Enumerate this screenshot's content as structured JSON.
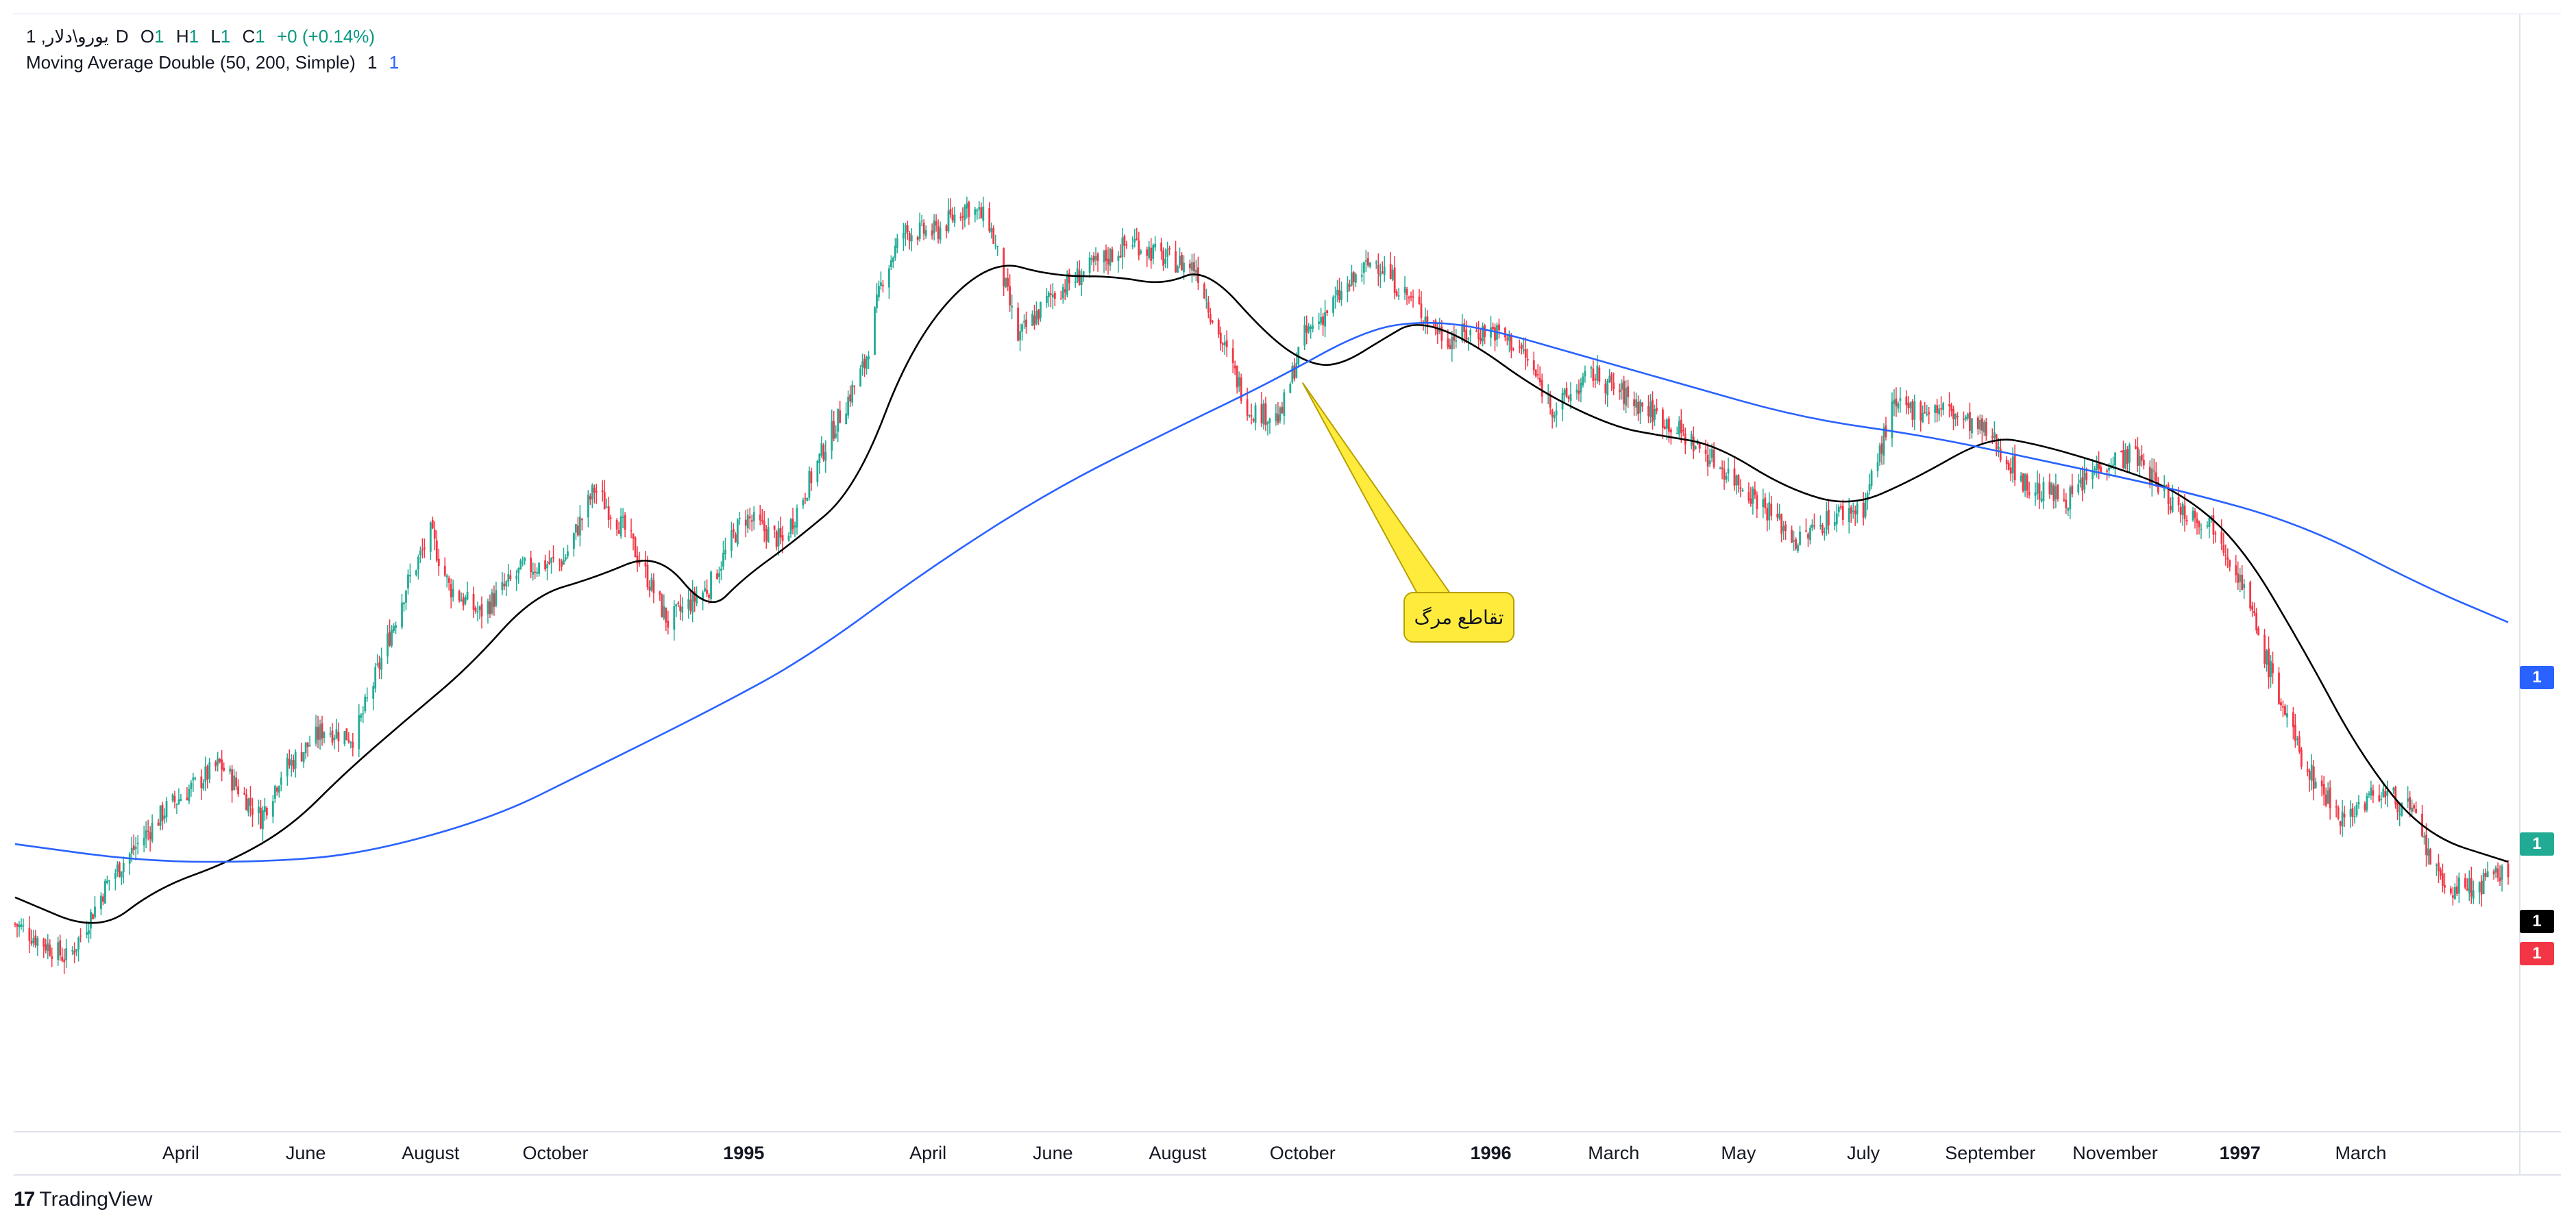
{
  "legend": {
    "symbol": "1 ,یورو\\دلار",
    "interval": "D",
    "o_label": "O",
    "o_value": "1",
    "h_label": "H",
    "h_value": "1",
    "l_label": "L",
    "l_value": "1",
    "c_label": "C",
    "c_value": "1",
    "change": "+0 (+0.14%)",
    "indicator_name": "Moving Average Double (50, 200, Simple)",
    "indicator_value_1": "1",
    "indicator_value_2": "1"
  },
  "annotation": {
    "text": "تقاطع مرگ"
  },
  "price_tags": [
    {
      "label": "1",
      "color": "#2962ff"
    },
    {
      "label": "1",
      "color": "#22ab94"
    },
    {
      "label": "1",
      "color": "#000000"
    },
    {
      "label": "1",
      "color": "#f23645"
    }
  ],
  "branding": {
    "name": "TradingView"
  },
  "colors": {
    "up": "#22ab94",
    "down": "#f23645",
    "ma_fast": "#000000",
    "ma_slow": "#2962ff",
    "grid": "#e0e3eb",
    "axis_text": "#131722",
    "callout_fill": "#ffeb3b"
  },
  "chart_data": {
    "type": "candlestick",
    "title": "",
    "xlabel": "",
    "ylabel": "",
    "y_axis_visible": false,
    "grid": false,
    "x_ticks": [
      "April",
      "June",
      "August",
      "October",
      "1995",
      "April",
      "June",
      "August",
      "October",
      "1996",
      "March",
      "May",
      "July",
      "September",
      "November",
      "1997",
      "March"
    ],
    "x_tick_bold": [
      false,
      false,
      false,
      false,
      true,
      false,
      false,
      false,
      false,
      true,
      false,
      false,
      false,
      false,
      false,
      true,
      false
    ],
    "x_tick_dates": [
      "1994-04-01",
      "1994-06-01",
      "1994-08-01",
      "1994-10-01",
      "1995-01-01",
      "1995-04-01",
      "1995-06-01",
      "1995-08-01",
      "1995-10-01",
      "1996-01-01",
      "1996-03-01",
      "1996-05-01",
      "1996-07-01",
      "1996-09-01",
      "1996-11-01",
      "1997-01-01",
      "1997-03-01"
    ],
    "xlim": [
      "1994-01-10",
      "1997-05-12"
    ],
    "ylim": [
      -5,
      100
    ],
    "close_path": [
      [
        "1994-01-10",
        9
      ],
      [
        "1994-02-05",
        5
      ],
      [
        "1994-02-25",
        14
      ],
      [
        "1994-03-25",
        22
      ],
      [
        "1994-04-20",
        27
      ],
      [
        "1994-05-10",
        21
      ],
      [
        "1994-05-20",
        26
      ],
      [
        "1994-06-10",
        31
      ],
      [
        "1994-06-25",
        30
      ],
      [
        "1994-07-20",
        47
      ],
      [
        "1994-08-01",
        53
      ],
      [
        "1994-08-10",
        47
      ],
      [
        "1994-08-25",
        44
      ],
      [
        "1994-09-15",
        49
      ],
      [
        "1994-10-05",
        50
      ],
      [
        "1994-10-20",
        58
      ],
      [
        "1994-11-05",
        53
      ],
      [
        "1994-11-25",
        43
      ],
      [
        "1994-12-15",
        47
      ],
      [
        "1995-01-01",
        55
      ],
      [
        "1995-01-20",
        52
      ],
      [
        "1995-02-10",
        63
      ],
      [
        "1995-03-01",
        72
      ],
      [
        "1995-03-10",
        82
      ],
      [
        "1995-03-20",
        87
      ],
      [
        "1995-04-05",
        87
      ],
      [
        "1995-04-20",
        90
      ],
      [
        "1995-05-01",
        88
      ],
      [
        "1995-05-15",
        75
      ],
      [
        "1995-06-01",
        80
      ],
      [
        "1995-06-20",
        83
      ],
      [
        "1995-07-10",
        86
      ],
      [
        "1995-07-25",
        84
      ],
      [
        "1995-08-10",
        83
      ],
      [
        "1995-08-20",
        76
      ],
      [
        "1995-09-05",
        67
      ],
      [
        "1995-09-20",
        66
      ],
      [
        "1995-10-01",
        75
      ],
      [
        "1995-10-20",
        80
      ],
      [
        "1995-11-05",
        84
      ],
      [
        "1995-11-20",
        80
      ],
      [
        "1995-12-10",
        75
      ],
      [
        "1996-01-01",
        76
      ],
      [
        "1996-01-15",
        74
      ],
      [
        "1996-02-01",
        67
      ],
      [
        "1996-02-20",
        71
      ],
      [
        "1996-03-10",
        68
      ],
      [
        "1996-03-25",
        66
      ],
      [
        "1996-04-15",
        62
      ],
      [
        "1996-05-10",
        57
      ],
      [
        "1996-05-30",
        52
      ],
      [
        "1996-06-15",
        55
      ],
      [
        "1996-07-01",
        56
      ],
      [
        "1996-07-15",
        67
      ],
      [
        "1996-08-10",
        67
      ],
      [
        "1996-09-01",
        64
      ],
      [
        "1996-09-20",
        58
      ],
      [
        "1996-10-10",
        57
      ],
      [
        "1996-10-25",
        61
      ],
      [
        "1996-11-10",
        62
      ],
      [
        "1996-12-01",
        56
      ],
      [
        "1996-12-20",
        54
      ],
      [
        "1997-01-01",
        48
      ],
      [
        "1997-01-15",
        38
      ],
      [
        "1997-02-01",
        27
      ],
      [
        "1997-02-20",
        21
      ],
      [
        "1997-03-10",
        24
      ],
      [
        "1997-03-25",
        22
      ],
      [
        "1997-04-10",
        13
      ],
      [
        "1997-04-25",
        13
      ],
      [
        "1997-05-12",
        15
      ]
    ],
    "series": [
      {
        "name": "50",
        "color": "#000000",
        "points": [
          [
            "1994-01-10",
            12
          ],
          [
            "1994-02-20",
            8
          ],
          [
            "1994-03-20",
            13
          ],
          [
            "1994-04-25",
            16
          ],
          [
            "1994-05-25",
            20
          ],
          [
            "1994-06-20",
            26
          ],
          [
            "1994-07-20",
            32
          ],
          [
            "1994-08-20",
            38
          ],
          [
            "1994-09-20",
            46
          ],
          [
            "1994-10-20",
            48
          ],
          [
            "1994-11-20",
            51
          ],
          [
            "1994-12-15",
            44
          ],
          [
            "1995-01-01",
            48
          ],
          [
            "1995-01-25",
            52
          ],
          [
            "1995-02-25",
            58
          ],
          [
            "1995-03-25",
            75
          ],
          [
            "1995-05-01",
            84
          ],
          [
            "1995-06-01",
            82
          ],
          [
            "1995-07-01",
            82
          ],
          [
            "1995-07-25",
            81
          ],
          [
            "1995-08-15",
            83
          ],
          [
            "1995-09-15",
            75
          ],
          [
            "1995-10-05",
            72
          ],
          [
            "1995-10-20",
            72
          ],
          [
            "1995-11-10",
            75
          ],
          [
            "1995-11-25",
            77
          ],
          [
            "1995-12-20",
            75
          ],
          [
            "1996-01-25",
            69
          ],
          [
            "1996-03-01",
            65
          ],
          [
            "1996-03-25",
            64
          ],
          [
            "1996-04-20",
            63
          ],
          [
            "1996-05-25",
            58
          ],
          [
            "1996-06-25",
            56
          ],
          [
            "1996-07-25",
            59
          ],
          [
            "1996-09-01",
            64
          ],
          [
            "1996-09-25",
            63
          ],
          [
            "1996-10-25",
            61
          ],
          [
            "1996-12-01",
            58
          ],
          [
            "1997-01-01",
            52
          ],
          [
            "1997-02-01",
            40
          ],
          [
            "1997-03-01",
            28
          ],
          [
            "1997-04-01",
            19
          ],
          [
            "1997-05-12",
            16
          ]
        ]
      },
      {
        "name": "200",
        "color": "#2962ff",
        "points": [
          [
            "1994-01-10",
            18
          ],
          [
            "1994-03-15",
            16
          ],
          [
            "1994-05-15",
            16
          ],
          [
            "1994-07-01",
            17
          ],
          [
            "1994-09-01",
            21
          ],
          [
            "1994-10-15",
            26
          ],
          [
            "1994-12-15",
            33
          ],
          [
            "1995-02-01",
            39
          ],
          [
            "1995-04-01",
            49
          ],
          [
            "1995-06-01",
            58
          ],
          [
            "1995-08-01",
            65
          ],
          [
            "1995-09-15",
            70
          ],
          [
            "1995-11-01",
            76
          ],
          [
            "1995-12-01",
            77
          ],
          [
            "1996-01-01",
            76
          ],
          [
            "1996-02-15",
            73
          ],
          [
            "1996-04-01",
            70
          ],
          [
            "1996-06-01",
            66
          ],
          [
            "1996-08-01",
            64
          ],
          [
            "1996-10-01",
            61
          ],
          [
            "1996-12-01",
            58
          ],
          [
            "1997-02-01",
            54
          ],
          [
            "1997-04-01",
            47
          ],
          [
            "1997-05-12",
            43
          ]
        ]
      }
    ],
    "annotations": [
      {
        "text": "تقاطع مرگ",
        "date": "1995-10-01",
        "value": 70
      }
    ]
  }
}
